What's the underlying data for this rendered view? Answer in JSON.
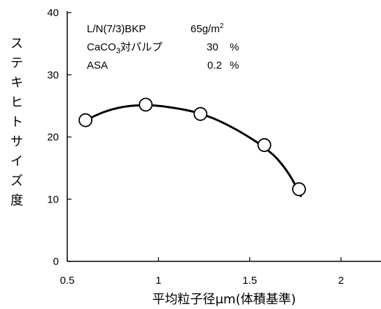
{
  "chart_data": {
    "type": "scatter",
    "title": "",
    "xlabel": "平均粒子径μm(体積基準)",
    "ylabel_chars": [
      "ス",
      "テ",
      "キ",
      "ヒ",
      "ト",
      "サ",
      "イ",
      "ズ",
      "度"
    ],
    "xlim": [
      0.5,
      2.2
    ],
    "ylim": [
      0,
      40
    ],
    "x_ticks": [
      0.5,
      1,
      1.5,
      2
    ],
    "x_tick_labels": [
      "0.5",
      "1",
      "1.5",
      "2"
    ],
    "y_ticks": [
      0,
      10,
      20,
      30,
      40
    ],
    "y_tick_labels": [
      "0",
      "10",
      "20",
      "30",
      "40"
    ],
    "grid": false,
    "points": [
      {
        "x": 0.6,
        "y": 22.7
      },
      {
        "x": 0.93,
        "y": 25.2
      },
      {
        "x": 1.23,
        "y": 23.7
      },
      {
        "x": 1.58,
        "y": 18.7
      },
      {
        "x": 1.77,
        "y": 11.6
      }
    ],
    "fit_curve": [
      {
        "x": 0.6,
        "y": 22.7
      },
      {
        "x": 0.7,
        "y": 24.0
      },
      {
        "x": 0.8,
        "y": 24.8
      },
      {
        "x": 0.9,
        "y": 25.1
      },
      {
        "x": 1.0,
        "y": 25.0
      },
      {
        "x": 1.1,
        "y": 24.6
      },
      {
        "x": 1.2,
        "y": 24.0
      },
      {
        "x": 1.3,
        "y": 23.0
      },
      {
        "x": 1.4,
        "y": 21.6
      },
      {
        "x": 1.5,
        "y": 19.9
      },
      {
        "x": 1.58,
        "y": 18.3
      },
      {
        "x": 1.65,
        "y": 16.5
      },
      {
        "x": 1.72,
        "y": 13.8
      },
      {
        "x": 1.78,
        "y": 10.5
      }
    ],
    "legend_lines": [
      {
        "label": "L/N(7/3)BKP",
        "value": "65",
        "unit": "g/m",
        "sup": "2"
      },
      {
        "label": "CaCO",
        "sub": "3",
        "label_rest": "対パルプ",
        "value": "30",
        "unit": "%"
      },
      {
        "label": "ASA",
        "value": "0.2",
        "unit": "%"
      }
    ],
    "colors": {
      "marker_fill": "#ffffff",
      "line": "#000000"
    }
  }
}
